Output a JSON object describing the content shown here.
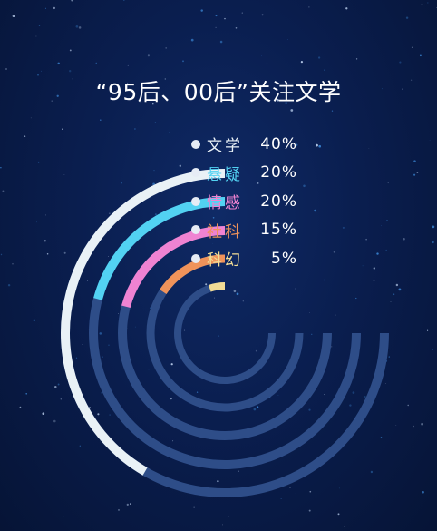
{
  "chart_data": {
    "type": "radial-bar",
    "title": "“95后、00后”关注文学",
    "max_value": 100,
    "series": [
      {
        "name": "文学",
        "value": 40,
        "label": "40%",
        "color": "#e9f1f6"
      },
      {
        "name": "悬疑",
        "value": 20,
        "label": "20%",
        "color": "#52d2f2"
      },
      {
        "name": "情感",
        "value": 20,
        "label": "20%",
        "color": "#ef83d2"
      },
      {
        "name": "社科",
        "value": 15,
        "label": "15%",
        "color": "#f0935a"
      },
      {
        "name": "科幻",
        "value": 5,
        "label": "5%",
        "color": "#f2dc95"
      }
    ],
    "track_color": "#2e4d88",
    "legend_placement": "top-right"
  }
}
